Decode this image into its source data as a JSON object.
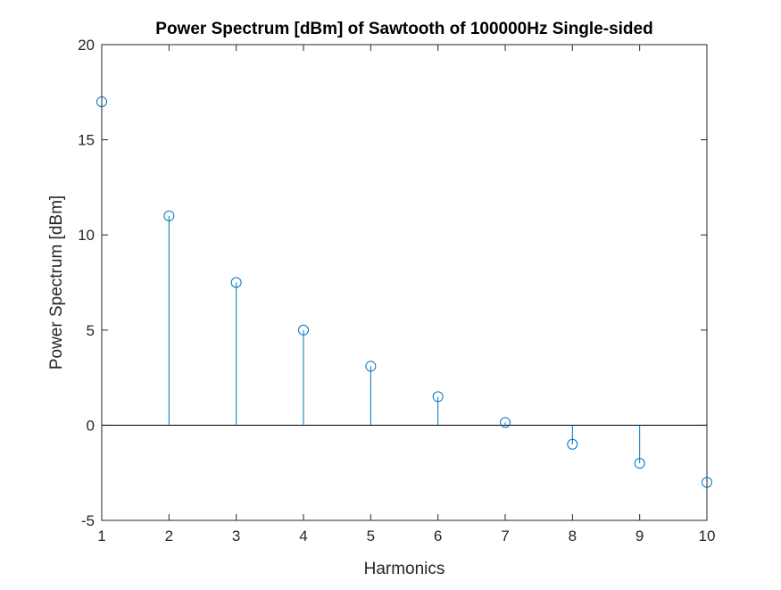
{
  "chart_data": {
    "type": "stem",
    "title": "Power Spectrum [dBm] of Sawtooth of 100000Hz Single-sided",
    "xlabel": "Harmonics",
    "ylabel": "Power Spectrum [dBm]",
    "xlim": [
      1,
      10
    ],
    "ylim": [
      -5,
      20
    ],
    "xticks": [
      "1",
      "2",
      "3",
      "4",
      "5",
      "6",
      "7",
      "8",
      "9",
      "10"
    ],
    "yticks": [
      "-5",
      "0",
      "5",
      "10",
      "15",
      "20"
    ],
    "baseline": 0,
    "grid": false,
    "legend": "none",
    "series": [
      {
        "color": "#0072BD",
        "marker": "circle",
        "x": [
          1,
          2,
          3,
          4,
          5,
          6,
          7,
          8,
          9,
          10
        ],
        "values": [
          17.0,
          11.0,
          7.5,
          5.0,
          3.1,
          1.5,
          0.15,
          -1.0,
          -2.0,
          -3.0
        ]
      }
    ]
  }
}
